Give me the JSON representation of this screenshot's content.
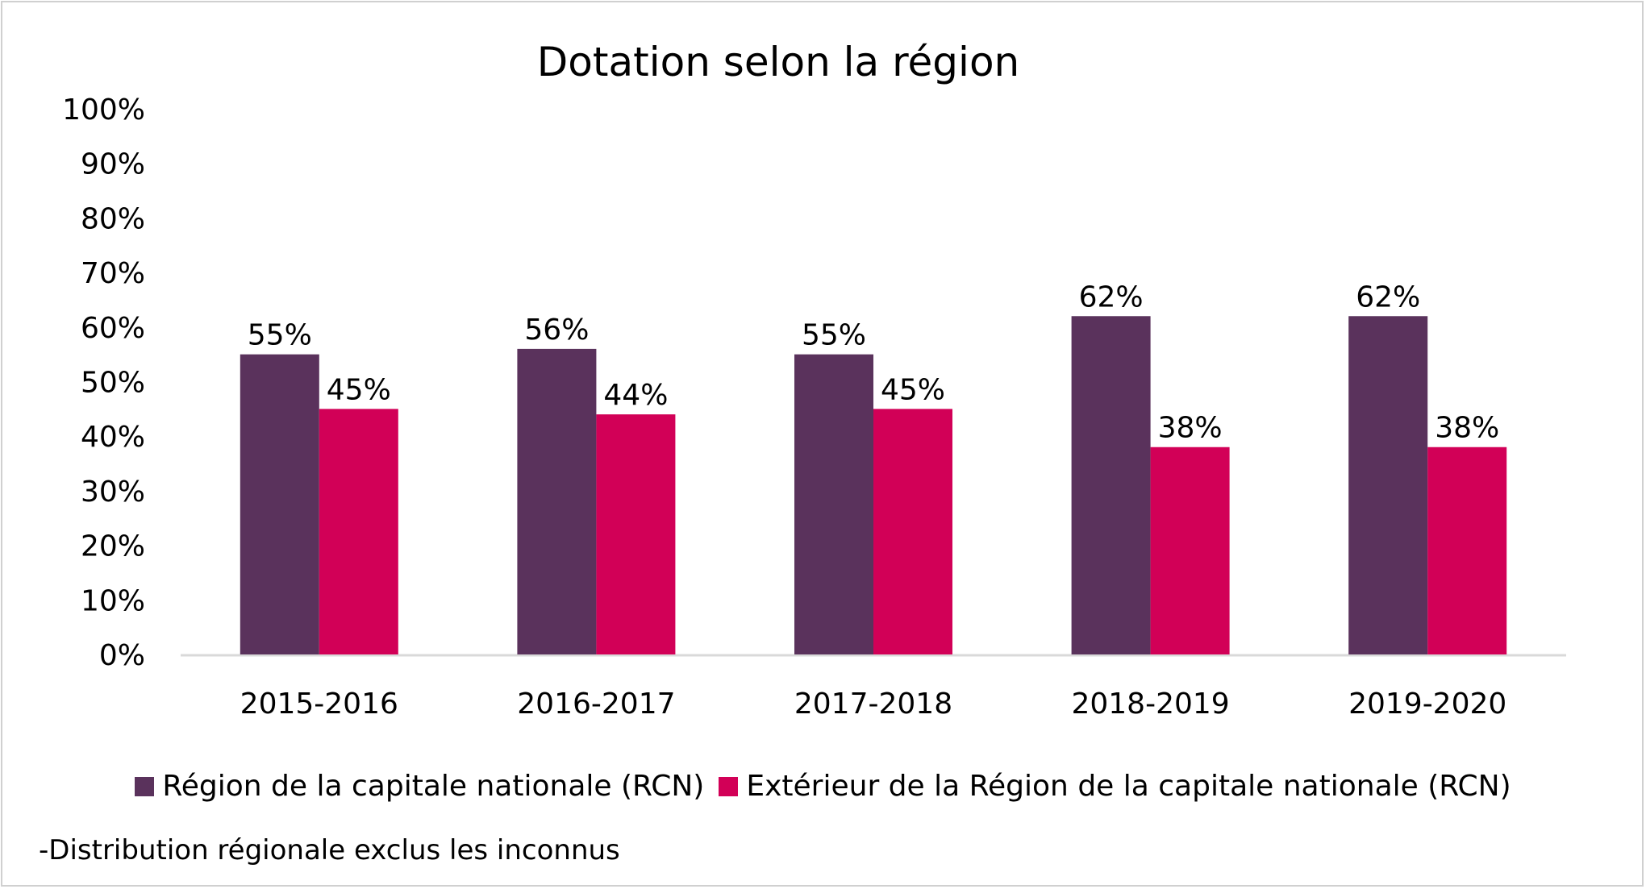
{
  "chart_data": {
    "type": "bar",
    "title": "Dotation selon la région",
    "categories": [
      "2015-2016",
      "2016-2017",
      "2017-2018",
      "2018-2019",
      "2019-2020"
    ],
    "series": [
      {
        "name": "Région de la capitale nationale (RCN)",
        "values": [
          55,
          56,
          55,
          62,
          62
        ],
        "color": "#5a325c"
      },
      {
        "name": "Extérieur de la Région de la capitale nationale (RCN)",
        "values": [
          45,
          44,
          45,
          38,
          38
        ],
        "color": "#d20057"
      }
    ],
    "ylim": [
      0,
      100
    ],
    "yticks": [
      "0%",
      "10%",
      "20%",
      "30%",
      "40%",
      "50%",
      "60%",
      "70%",
      "80%",
      "90%",
      "100%"
    ],
    "data_label_suffix": "%",
    "grid": false,
    "legend": "bottom",
    "xlabel": "",
    "ylabel": ""
  },
  "footnote": "-Distribution régionale exclus les inconnus"
}
